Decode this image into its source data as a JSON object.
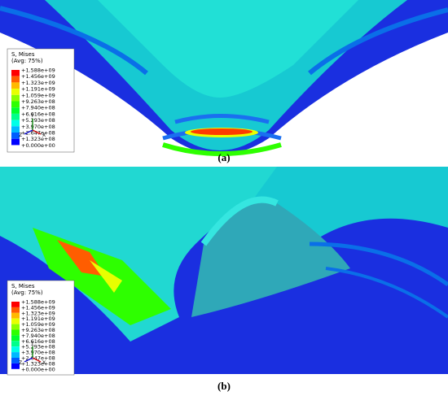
{
  "panels": [
    {
      "label": "(a)",
      "legend": {
        "title": "S, Mises",
        "subtitle": "(Avg: 75%)",
        "values": [
          "+1.588e+09",
          "+1.456e+09",
          "+1.323e+09",
          "+1.191e+09",
          "+1.059e+09",
          "+9.263e+08",
          "+7.940e+08",
          "+6.616e+08",
          "+5.293e+08",
          "+3.970e+08",
          "+2.647e+08",
          "+1.323e+08",
          "+0.000e+00"
        ]
      },
      "triad": {
        "y": "Y",
        "z": "Z",
        "x": "X"
      }
    },
    {
      "label": "(b)",
      "legend": {
        "title": "S, Mises",
        "subtitle": "(Avg: 75%)",
        "values": [
          "+1.588e+09",
          "+1.456e+09",
          "+1.323e+09",
          "+1.191e+09",
          "+1.059e+09",
          "+9.263e+08",
          "+7.940e+08",
          "+6.616e+08",
          "+5.293e+08",
          "+3.970e+08",
          "+2.647e+08",
          "+1.323e+08",
          "+0.000e+00"
        ]
      },
      "triad": {
        "y": "Y",
        "z": "Z",
        "x": "X"
      }
    }
  ]
}
